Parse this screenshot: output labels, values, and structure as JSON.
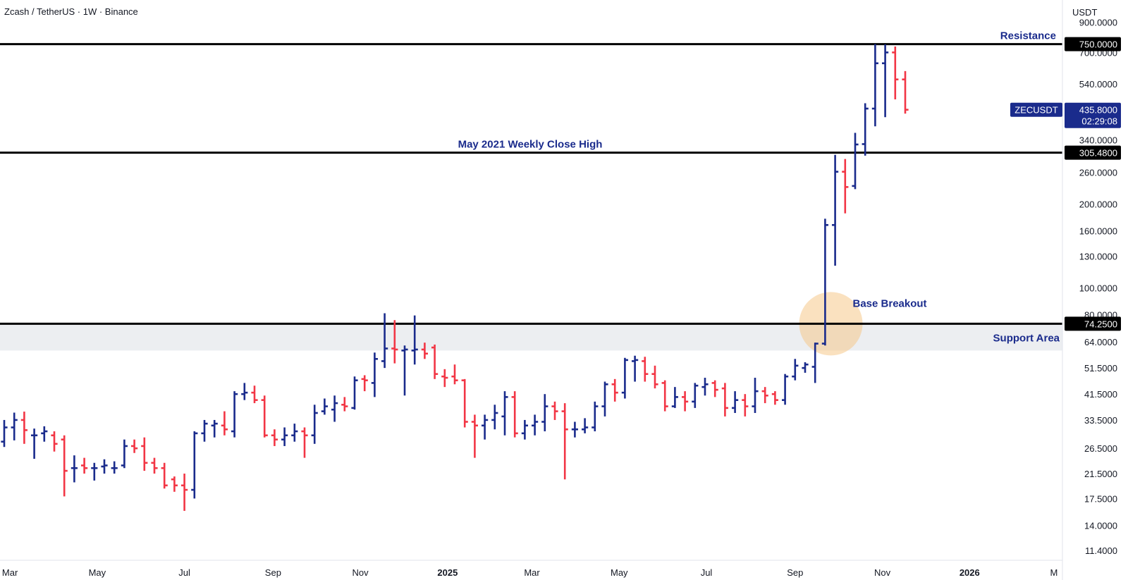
{
  "header": {
    "title": "Zcash / TetherUS · 1W · Binance",
    "currency": "USDT"
  },
  "colors": {
    "up": "#1a2b8c",
    "down": "#f23645",
    "line": "#000000",
    "annotation": "#1a2b8c",
    "support_band": "#eceef1",
    "circle": "#f5c98a"
  },
  "chart_data": {
    "type": "ohlc",
    "scale": "log",
    "ylim": [
      10.5,
      1080
    ],
    "y_ticks": [
      "900.0000",
      "700.0000",
      "540.0000",
      "340.0000",
      "260.0000",
      "200.0000",
      "160.0000",
      "130.0000",
      "100.0000",
      "80.0000",
      "64.0000",
      "51.5000",
      "41.5000",
      "33.5000",
      "26.5000",
      "21.5000",
      "17.5000",
      "14.0000",
      "11.4000"
    ],
    "x_ticks": [
      {
        "label": "Mar",
        "date": "2024-03-01",
        "bold": false
      },
      {
        "label": "May",
        "date": "2024-05-01",
        "bold": false
      },
      {
        "label": "Jul",
        "date": "2024-07-01",
        "bold": false
      },
      {
        "label": "Sep",
        "date": "2024-09-01",
        "bold": false
      },
      {
        "label": "Nov",
        "date": "2024-11-01",
        "bold": false
      },
      {
        "label": "2025",
        "date": "2025-01-01",
        "bold": true
      },
      {
        "label": "Mar",
        "date": "2025-03-01",
        "bold": false
      },
      {
        "label": "May",
        "date": "2025-05-01",
        "bold": false
      },
      {
        "label": "Jul",
        "date": "2025-07-01",
        "bold": false
      },
      {
        "label": "Sep",
        "date": "2025-09-01",
        "bold": false
      },
      {
        "label": "Nov",
        "date": "2025-11-01",
        "bold": false
      },
      {
        "label": "2026",
        "date": "2026-01-01",
        "bold": true
      },
      {
        "label": "M",
        "date": "2026-03-01",
        "bold": false
      }
    ],
    "bars": [
      {
        "date": "2024-02-26",
        "o": 28.0,
        "h": 33.5,
        "l": 26.8,
        "c": 31.5
      },
      {
        "date": "2024-03-04",
        "o": 31.5,
        "h": 35.6,
        "l": 28.3,
        "c": 33.5
      },
      {
        "date": "2024-03-11",
        "o": 33.5,
        "h": 35.9,
        "l": 27.5,
        "c": 30.8
      },
      {
        "date": "2024-03-18",
        "o": 29.5,
        "h": 31.2,
        "l": 24.3,
        "c": 29.5
      },
      {
        "date": "2024-03-25",
        "o": 30.0,
        "h": 31.8,
        "l": 28.0,
        "c": 30.5
      },
      {
        "date": "2024-04-01",
        "o": 29.5,
        "h": 30.5,
        "l": 25.8,
        "c": 27.5
      },
      {
        "date": "2024-04-08",
        "o": 28.5,
        "h": 29.5,
        "l": 17.8,
        "c": 22.0
      },
      {
        "date": "2024-04-15",
        "o": 22.5,
        "h": 25.0,
        "l": 20.0,
        "c": 22.5
      },
      {
        "date": "2024-04-22",
        "o": 23.0,
        "h": 24.5,
        "l": 21.5,
        "c": 22.5
      },
      {
        "date": "2024-04-29",
        "o": 22.5,
        "h": 23.5,
        "l": 20.3,
        "c": 22.5
      },
      {
        "date": "2024-05-06",
        "o": 22.8,
        "h": 24.2,
        "l": 21.5,
        "c": 23.0
      },
      {
        "date": "2024-05-13",
        "o": 22.5,
        "h": 23.8,
        "l": 21.5,
        "c": 22.5
      },
      {
        "date": "2024-05-20",
        "o": 23.0,
        "h": 28.5,
        "l": 22.5,
        "c": 27.0
      },
      {
        "date": "2024-05-27",
        "o": 27.0,
        "h": 28.5,
        "l": 25.5,
        "c": 26.5
      },
      {
        "date": "2024-06-03",
        "o": 27.0,
        "h": 29.0,
        "l": 22.0,
        "c": 23.5
      },
      {
        "date": "2024-06-10",
        "o": 23.5,
        "h": 24.5,
        "l": 21.5,
        "c": 22.5
      },
      {
        "date": "2024-06-17",
        "o": 22.5,
        "h": 23.5,
        "l": 19.0,
        "c": 19.5
      },
      {
        "date": "2024-06-24",
        "o": 20.5,
        "h": 21.0,
        "l": 18.5,
        "c": 19.5
      },
      {
        "date": "2024-07-01",
        "o": 19.5,
        "h": 21.5,
        "l": 15.8,
        "c": 18.8
      },
      {
        "date": "2024-07-08",
        "o": 18.8,
        "h": 30.5,
        "l": 17.5,
        "c": 30.0
      },
      {
        "date": "2024-07-15",
        "o": 30.0,
        "h": 33.5,
        "l": 28.0,
        "c": 32.5
      },
      {
        "date": "2024-07-22",
        "o": 32.0,
        "h": 33.5,
        "l": 29.0,
        "c": 32.5
      },
      {
        "date": "2024-07-29",
        "o": 32.0,
        "h": 36.0,
        "l": 29.5,
        "c": 31.0
      },
      {
        "date": "2024-08-05",
        "o": 30.5,
        "h": 42.5,
        "l": 29.0,
        "c": 41.5
      },
      {
        "date": "2024-08-12",
        "o": 41.5,
        "h": 45.5,
        "l": 39.5,
        "c": 42.0
      },
      {
        "date": "2024-08-19",
        "o": 42.0,
        "h": 44.5,
        "l": 38.5,
        "c": 39.5
      },
      {
        "date": "2024-08-26",
        "o": 39.5,
        "h": 41.0,
        "l": 29.0,
        "c": 29.5
      },
      {
        "date": "2024-09-02",
        "o": 29.5,
        "h": 31.0,
        "l": 27.0,
        "c": 28.5
      },
      {
        "date": "2024-09-09",
        "o": 28.5,
        "h": 31.5,
        "l": 27.0,
        "c": 29.5
      },
      {
        "date": "2024-09-16",
        "o": 29.5,
        "h": 32.5,
        "l": 28.0,
        "c": 30.5
      },
      {
        "date": "2024-09-23",
        "o": 30.5,
        "h": 31.5,
        "l": 24.5,
        "c": 29.5
      },
      {
        "date": "2024-09-30",
        "o": 29.5,
        "h": 38.0,
        "l": 27.5,
        "c": 35.5
      },
      {
        "date": "2024-10-07",
        "o": 36.0,
        "h": 40.0,
        "l": 35.0,
        "c": 37.5
      },
      {
        "date": "2024-10-14",
        "o": 36.5,
        "h": 41.0,
        "l": 33.0,
        "c": 38.5
      },
      {
        "date": "2024-10-21",
        "o": 38.0,
        "h": 40.5,
        "l": 36.0,
        "c": 37.5
      },
      {
        "date": "2024-10-28",
        "o": 37.0,
        "h": 48.0,
        "l": 36.5,
        "c": 46.5
      },
      {
        "date": "2024-11-04",
        "o": 47.0,
        "h": 48.5,
        "l": 42.5,
        "c": 46.5
      },
      {
        "date": "2024-11-11",
        "o": 45.5,
        "h": 58.5,
        "l": 40.5,
        "c": 55.5
      },
      {
        "date": "2024-11-18",
        "o": 54.5,
        "h": 81.0,
        "l": 51.5,
        "c": 60.5
      },
      {
        "date": "2024-11-25",
        "o": 60.5,
        "h": 76.5,
        "l": 53.5,
        "c": 60.0
      },
      {
        "date": "2024-12-02",
        "o": 59.5,
        "h": 62.0,
        "l": 41.0,
        "c": 60.0
      },
      {
        "date": "2024-12-09",
        "o": 59.5,
        "h": 79.5,
        "l": 53.0,
        "c": 60.0
      },
      {
        "date": "2024-12-16",
        "o": 60.0,
        "h": 63.5,
        "l": 55.5,
        "c": 58.0
      },
      {
        "date": "2024-12-23",
        "o": 61.0,
        "h": 62.5,
        "l": 47.0,
        "c": 49.0
      },
      {
        "date": "2024-12-30",
        "o": 48.0,
        "h": 51.0,
        "l": 44.0,
        "c": 47.5
      },
      {
        "date": "2025-01-06",
        "o": 48.0,
        "h": 53.0,
        "l": 45.0,
        "c": 46.5
      },
      {
        "date": "2025-01-13",
        "o": 46.5,
        "h": 47.0,
        "l": 31.5,
        "c": 33.0
      },
      {
        "date": "2025-01-20",
        "o": 33.0,
        "h": 35.0,
        "l": 24.5,
        "c": 32.0
      },
      {
        "date": "2025-01-27",
        "o": 32.0,
        "h": 35.0,
        "l": 28.5,
        "c": 33.5
      },
      {
        "date": "2025-02-03",
        "o": 33.5,
        "h": 38.0,
        "l": 31.0,
        "c": 35.5
      },
      {
        "date": "2025-02-10",
        "o": 34.5,
        "h": 42.5,
        "l": 29.5,
        "c": 40.5
      },
      {
        "date": "2025-02-17",
        "o": 40.5,
        "h": 42.5,
        "l": 29.0,
        "c": 30.0
      },
      {
        "date": "2025-02-24",
        "o": 30.0,
        "h": 33.5,
        "l": 28.5,
        "c": 32.0
      },
      {
        "date": "2025-03-03",
        "o": 32.0,
        "h": 35.0,
        "l": 29.5,
        "c": 33.0
      },
      {
        "date": "2025-03-10",
        "o": 33.0,
        "h": 41.5,
        "l": 30.5,
        "c": 37.5
      },
      {
        "date": "2025-03-17",
        "o": 37.5,
        "h": 39.0,
        "l": 33.5,
        "c": 36.0
      },
      {
        "date": "2025-03-24",
        "o": 36.0,
        "h": 38.5,
        "l": 20.5,
        "c": 31.0
      },
      {
        "date": "2025-03-31",
        "o": 31.0,
        "h": 33.0,
        "l": 29.0,
        "c": 31.0
      },
      {
        "date": "2025-04-07",
        "o": 31.0,
        "h": 34.0,
        "l": 30.0,
        "c": 31.5
      },
      {
        "date": "2025-04-14",
        "o": 31.5,
        "h": 39.0,
        "l": 30.5,
        "c": 37.5
      },
      {
        "date": "2025-04-21",
        "o": 37.5,
        "h": 46.0,
        "l": 34.5,
        "c": 45.0
      },
      {
        "date": "2025-04-28",
        "o": 45.0,
        "h": 47.0,
        "l": 39.0,
        "c": 42.0
      },
      {
        "date": "2025-05-05",
        "o": 42.0,
        "h": 56.0,
        "l": 40.0,
        "c": 55.0
      },
      {
        "date": "2025-05-12",
        "o": 54.5,
        "h": 57.0,
        "l": 46.0,
        "c": 55.0
      },
      {
        "date": "2025-05-19",
        "o": 54.5,
        "h": 56.5,
        "l": 46.0,
        "c": 49.0
      },
      {
        "date": "2025-05-26",
        "o": 49.0,
        "h": 52.5,
        "l": 43.5,
        "c": 45.0
      },
      {
        "date": "2025-06-02",
        "o": 45.5,
        "h": 46.5,
        "l": 36.0,
        "c": 37.5
      },
      {
        "date": "2025-06-09",
        "o": 37.5,
        "h": 44.0,
        "l": 37.0,
        "c": 40.5
      },
      {
        "date": "2025-06-16",
        "o": 40.5,
        "h": 42.5,
        "l": 36.0,
        "c": 39.0
      },
      {
        "date": "2025-06-23",
        "o": 39.0,
        "h": 45.5,
        "l": 37.0,
        "c": 44.5
      },
      {
        "date": "2025-06-30",
        "o": 44.0,
        "h": 47.5,
        "l": 41.0,
        "c": 45.0
      },
      {
        "date": "2025-07-07",
        "o": 45.5,
        "h": 46.5,
        "l": 40.5,
        "c": 43.0
      },
      {
        "date": "2025-07-14",
        "o": 43.5,
        "h": 45.5,
        "l": 34.5,
        "c": 37.0
      },
      {
        "date": "2025-07-21",
        "o": 37.0,
        "h": 42.5,
        "l": 35.5,
        "c": 39.5
      },
      {
        "date": "2025-07-28",
        "o": 39.5,
        "h": 41.5,
        "l": 34.5,
        "c": 37.5
      },
      {
        "date": "2025-08-04",
        "o": 37.5,
        "h": 47.5,
        "l": 35.5,
        "c": 42.5
      },
      {
        "date": "2025-08-11",
        "o": 42.5,
        "h": 44.0,
        "l": 38.5,
        "c": 41.0
      },
      {
        "date": "2025-08-18",
        "o": 41.5,
        "h": 42.5,
        "l": 38.0,
        "c": 39.5
      },
      {
        "date": "2025-08-25",
        "o": 39.5,
        "h": 49.0,
        "l": 38.0,
        "c": 48.0
      },
      {
        "date": "2025-09-01",
        "o": 48.0,
        "h": 55.5,
        "l": 46.5,
        "c": 52.5
      },
      {
        "date": "2025-09-08",
        "o": 51.5,
        "h": 54.0,
        "l": 49.5,
        "c": 53.0
      },
      {
        "date": "2025-09-15",
        "o": 52.0,
        "h": 63.5,
        "l": 45.5,
        "c": 63.0
      },
      {
        "date": "2025-09-22",
        "o": 63.0,
        "h": 177.0,
        "l": 62.0,
        "c": 168.0
      },
      {
        "date": "2025-09-29",
        "o": 168.0,
        "h": 300.0,
        "l": 120.0,
        "c": 261.0
      },
      {
        "date": "2025-10-06",
        "o": 261.0,
        "h": 290.0,
        "l": 185.0,
        "c": 230.0
      },
      {
        "date": "2025-10-13",
        "o": 232.0,
        "h": 360.0,
        "l": 226.0,
        "c": 327.0
      },
      {
        "date": "2025-10-20",
        "o": 328.0,
        "h": 460.0,
        "l": 298.0,
        "c": 440.0
      },
      {
        "date": "2025-10-27",
        "o": 440.0,
        "h": 750.0,
        "l": 380.0,
        "c": 640.0
      },
      {
        "date": "2025-11-03",
        "o": 640.0,
        "h": 748.0,
        "l": 410.0,
        "c": 700.0
      },
      {
        "date": "2025-11-10",
        "o": 700.0,
        "h": 735.0,
        "l": 475.0,
        "c": 560.0
      },
      {
        "date": "2025-11-17",
        "o": 560.0,
        "h": 600.0,
        "l": 422.0,
        "c": 435.8
      }
    ],
    "lines": [
      {
        "name": "resistance",
        "value": 750,
        "label": "Resistance",
        "badge": "750.0000"
      },
      {
        "name": "may-2021-high",
        "value": 305.48,
        "label": "May 2021 Weekly Close High",
        "badge": "305.4800"
      },
      {
        "name": "support",
        "value": 74.25,
        "label": "Support Area",
        "badge": "74.2500"
      }
    ],
    "support_band": [
      59.5,
      74.25
    ],
    "annotations": [
      {
        "name": "base-breakout",
        "text": "Base Breakout",
        "date": "2025-09-26",
        "value": 74.25
      }
    ],
    "last_price": {
      "symbol": "ZECUSDT",
      "price": "435.8000",
      "countdown": "02:29:08",
      "value": 435.8
    }
  }
}
